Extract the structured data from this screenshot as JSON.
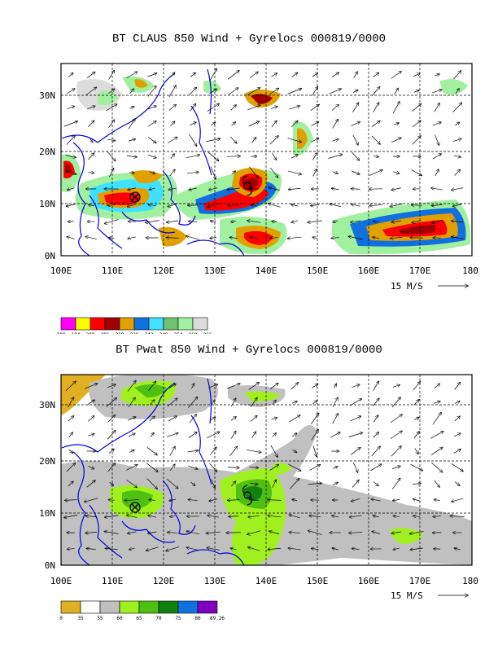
{
  "maps": [
    {
      "title": "BT CLAUS 850 Wind + Gyrelocs 000819/0000",
      "lat_labels": [
        "30N",
        "20N",
        "10N",
        "0N"
      ],
      "lon_labels": [
        "100E",
        "110E",
        "120E",
        "130E",
        "140E",
        "150E",
        "160E",
        "170E",
        "180"
      ],
      "lat_range": [
        0,
        36
      ],
      "lon_range": [
        100,
        180
      ],
      "vector_scale_label": "15 M/S",
      "legend_values": [
        "188",
        "194",
        "200",
        "206",
        "218",
        "230",
        "242",
        "248",
        "254",
        "260",
        "266"
      ],
      "legend_colors": [
        "#ff00ff",
        "#ffff00",
        "#ff0000",
        "#a00000",
        "#e0a000",
        "#1070e0",
        "#40e0ff",
        "#70c070",
        "#a0f0a0",
        "#dcdcdc"
      ]
    },
    {
      "title": "BT Pwat 850 Wind + Gyrelocs 000819/0000",
      "lat_labels": [
        "30N",
        "20N",
        "10N",
        "0N"
      ],
      "lon_labels": [
        "100E",
        "110E",
        "120E",
        "130E",
        "140E",
        "150E",
        "160E",
        "170E",
        "180"
      ],
      "lat_range": [
        0,
        36
      ],
      "lon_range": [
        100,
        180
      ],
      "vector_scale_label": "15 M/S",
      "legend_values": [
        "0",
        "35",
        "55",
        "60",
        "65",
        "70",
        "75",
        "80",
        "89.26"
      ],
      "legend_colors": [
        "#e0b020",
        "#ffffff",
        "#c0c0c0",
        "#a0f020",
        "#50c010",
        "#108010",
        "#1070e0",
        "#8000c0"
      ]
    }
  ]
}
